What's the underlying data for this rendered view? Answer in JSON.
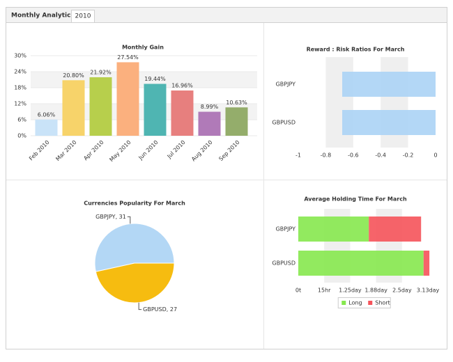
{
  "tabs": [
    "Monthly Analytics",
    "2010"
  ],
  "chart_data": [
    {
      "type": "bar",
      "title": "Monthly Gain",
      "categories": [
        "Feb 2010",
        "Mar 2010",
        "Apr 2010",
        "May 2010",
        "Jun 2010",
        "Jul 2010",
        "Aug 2010",
        "Sep 2010"
      ],
      "values": [
        6.06,
        20.8,
        21.92,
        27.54,
        19.44,
        16.96,
        8.99,
        10.63
      ],
      "value_labels": [
        "6.06%",
        "20.80%",
        "21.92%",
        "27.54%",
        "19.44%",
        "16.96%",
        "8.99%",
        "10.63%"
      ],
      "colors": [
        "#c9e3f8",
        "#f7d36a",
        "#b7cf4c",
        "#fbb07e",
        "#4fb5b2",
        "#e77f7e",
        "#b07ab8",
        "#94ad6b"
      ],
      "ylim": [
        0,
        30
      ],
      "yticks": [
        {
          "value": 0,
          "label": "0%"
        },
        {
          "value": 6,
          "label": "6%"
        },
        {
          "value": 12,
          "label": "12%"
        },
        {
          "value": 18,
          "label": "18%"
        },
        {
          "value": 24,
          "label": "24%"
        },
        {
          "value": 30,
          "label": "30%"
        }
      ],
      "grid": "bands"
    },
    {
      "type": "barh",
      "title": "Reward : Risk Ratios For March",
      "categories": [
        "GBPJPY",
        "GBPUSD"
      ],
      "series": [
        {
          "name": null,
          "color": "#abd3f5",
          "values": [
            -0.68,
            -0.68
          ]
        }
      ],
      "xlim": [
        -1,
        0
      ],
      "xticks": [
        -1,
        -0.8,
        -0.6,
        -0.4,
        -0.2,
        0
      ],
      "grid": "bands"
    },
    {
      "type": "pie",
      "title": "Currencies Popularity For March",
      "categories": [
        "GBPJPY",
        "GBPUSD"
      ],
      "values": [
        31,
        27
      ],
      "value_labels": [
        "GBPJPY, 31",
        "GBPUSD, 27"
      ],
      "colors": [
        "#b3d7f5",
        "#f6bc10"
      ]
    },
    {
      "type": "barh",
      "title": "Average Holding Time For March",
      "categories": [
        "GBPJPY",
        "GBPUSD"
      ],
      "series": [
        {
          "name": "Long",
          "color": "#86e84e",
          "values": [
            1.7,
            3.02
          ]
        },
        {
          "name": "Short",
          "color": "#f5535a",
          "values": [
            1.26,
            0.14
          ]
        }
      ],
      "xlim": [
        0,
        3.2
      ],
      "xticks": [
        {
          "value": 0,
          "label": "0t"
        },
        {
          "value": 0.625,
          "label": "15hr"
        },
        {
          "value": 1.25,
          "label": "1.25day"
        },
        {
          "value": 1.875,
          "label": "1.88day"
        },
        {
          "value": 2.5,
          "label": "2.5day"
        },
        {
          "value": 3.125,
          "label": "3.13day"
        }
      ],
      "grid": "bands",
      "legend": "bottom"
    }
  ]
}
